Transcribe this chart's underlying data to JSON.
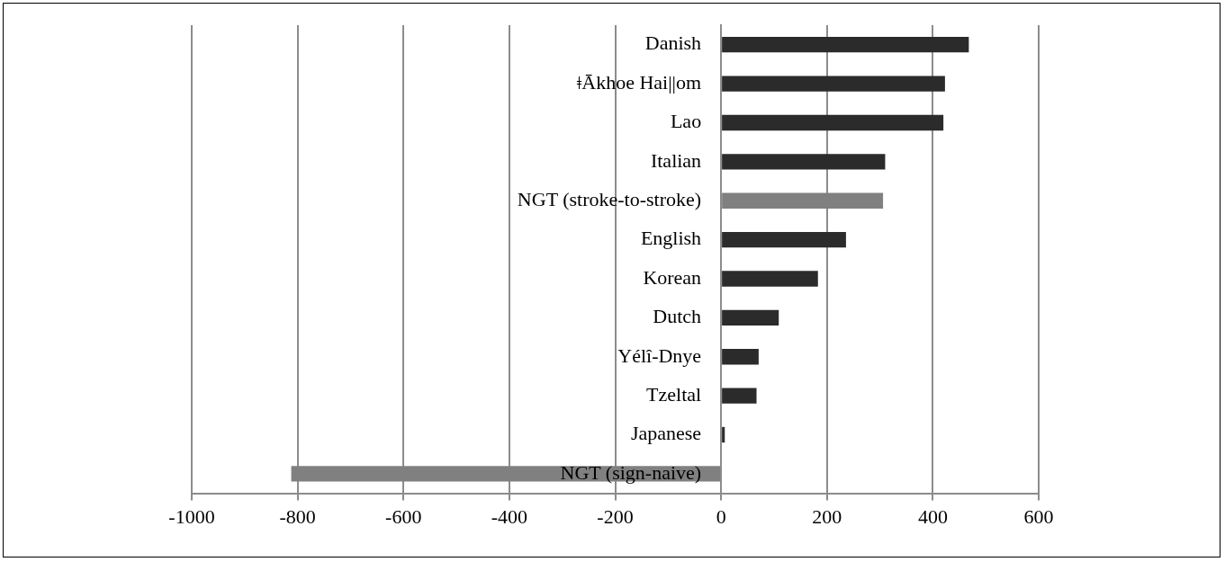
{
  "chart_data": {
    "type": "bar",
    "orientation": "horizontal",
    "categories": [
      "Danish",
      "ǂĀkhoe Hai||om",
      "Lao",
      "Italian",
      "NGT (stroke-to-stroke)",
      "English",
      "Korean",
      "Dutch",
      "Yélî-Dnye",
      "Tzeltal",
      "Japanese",
      "NGT (sign-naive)"
    ],
    "values": [
      468,
      423,
      420,
      310,
      306,
      236,
      183,
      109,
      71,
      67,
      7,
      -812
    ],
    "colors": [
      "#2b2b2b",
      "#2b2b2b",
      "#2b2b2b",
      "#2b2b2b",
      "#808080",
      "#2b2b2b",
      "#2b2b2b",
      "#2b2b2b",
      "#2b2b2b",
      "#2b2b2b",
      "#2b2b2b",
      "#808080"
    ],
    "xlim": [
      -1000,
      600
    ],
    "xticks": [
      -1000,
      -800,
      -600,
      -400,
      -200,
      0,
      200,
      400,
      600
    ],
    "grid": "x",
    "legend": false
  }
}
